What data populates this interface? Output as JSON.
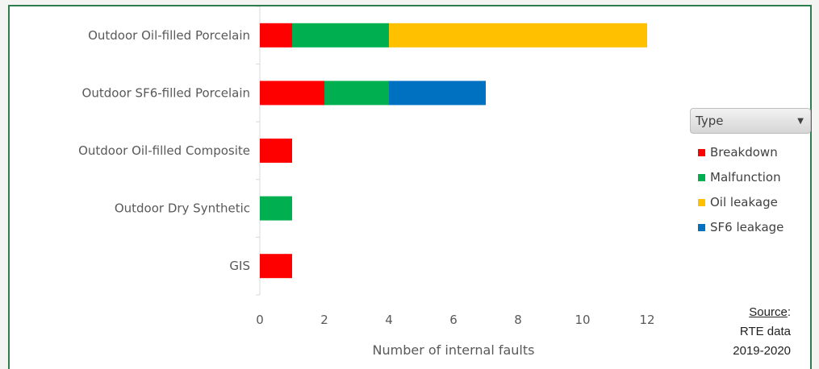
{
  "chart_data": {
    "type": "bar",
    "orientation": "horizontal",
    "stacked": true,
    "categories": [
      "Outdoor Oil-filled Porcelain",
      "Outdoor SF6-filled Porcelain",
      "Outdoor Oil-filled Composite",
      "Outdoor Dry Synthetic",
      "GIS"
    ],
    "series": [
      {
        "name": "Breakdown",
        "color": "#ff0000",
        "values": [
          1,
          2,
          1,
          0,
          1
        ]
      },
      {
        "name": "Malfunction",
        "color": "#00b050",
        "values": [
          3,
          2,
          0,
          1,
          0
        ]
      },
      {
        "name": "Oil leakage",
        "color": "#ffc000",
        "values": [
          8,
          0,
          0,
          0,
          0
        ]
      },
      {
        "name": "SF6 leakage",
        "color": "#0070c0",
        "values": [
          0,
          3,
          0,
          0,
          0
        ]
      }
    ],
    "xlabel": "Number of internal faults",
    "ylabel": "",
    "xlim": [
      0,
      12
    ],
    "xticks": [
      0,
      2,
      4,
      6,
      8,
      10,
      12
    ],
    "grid": false,
    "legend": {
      "title": "Type",
      "position": "right"
    }
  },
  "source": {
    "label": "Source",
    "colon": ":",
    "line1": "RTE data",
    "line2": "2019-2020"
  }
}
